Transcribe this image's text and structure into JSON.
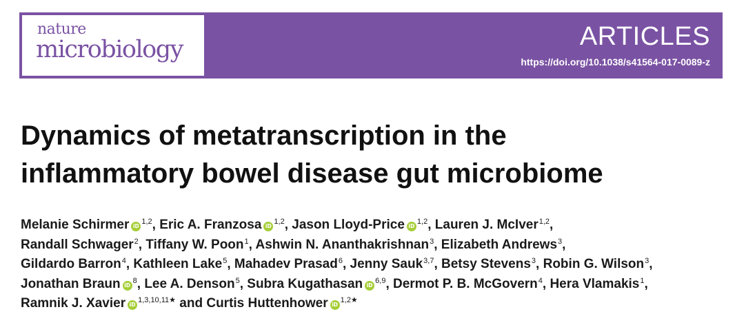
{
  "banner": {
    "journal_line1": "nature",
    "journal_line2": "microbiology",
    "section": "ARTICLES",
    "doi": "https://doi.org/10.1038/s41564-017-0089-z"
  },
  "title_line1": "Dynamics of metatranscription in the",
  "title_line2": "inflammatory bowel disease gut microbiome",
  "authors": [
    {
      "name": "Melanie Schirmer",
      "orcid": true,
      "aff": "1,2",
      "sep": ", "
    },
    {
      "name": "Eric A. Franzosa",
      "orcid": true,
      "aff": "1,2",
      "sep": ", "
    },
    {
      "name": "Jason Lloyd-Price",
      "orcid": true,
      "aff": "1,2",
      "sep": ", "
    },
    {
      "name": "Lauren J. McIver",
      "orcid": false,
      "aff": "1,2",
      "sep": ","
    },
    {
      "name": "Randall Schwager",
      "orcid": false,
      "aff": "2",
      "sep": ", "
    },
    {
      "name": "Tiffany W. Poon",
      "orcid": false,
      "aff": "1",
      "sep": ", "
    },
    {
      "name": "Ashwin N. Ananthakrishnan",
      "orcid": false,
      "aff": "3",
      "sep": ", "
    },
    {
      "name": "Elizabeth Andrews",
      "orcid": false,
      "aff": "3",
      "sep": ","
    },
    {
      "name": "Gildardo Barron",
      "orcid": false,
      "aff": "4",
      "sep": ", "
    },
    {
      "name": "Kathleen Lake",
      "orcid": false,
      "aff": "5",
      "sep": ", "
    },
    {
      "name": "Mahadev Prasad",
      "orcid": false,
      "aff": "6",
      "sep": ", "
    },
    {
      "name": "Jenny Sauk",
      "orcid": false,
      "aff": "3,7",
      "sep": ", "
    },
    {
      "name": "Betsy Stevens",
      "orcid": false,
      "aff": "3",
      "sep": ", "
    },
    {
      "name": "Robin G. Wilson",
      "orcid": false,
      "aff": "3",
      "sep": ","
    },
    {
      "name": "Jonathan Braun",
      "orcid": true,
      "aff": "8",
      "sep": ", "
    },
    {
      "name": "Lee A. Denson",
      "orcid": false,
      "aff": "5",
      "sep": ", "
    },
    {
      "name": "Subra Kugathasan",
      "orcid": true,
      "aff": "6,9",
      "sep": ", "
    },
    {
      "name": "Dermot P. B. McGovern",
      "orcid": false,
      "aff": "4",
      "sep": ", "
    },
    {
      "name": "Hera Vlamakis",
      "orcid": false,
      "aff": "1",
      "sep": ","
    },
    {
      "name": "Ramnik J. Xavier",
      "orcid": true,
      "aff": "1,3,10,11★",
      "sep": " and "
    },
    {
      "name": "Curtis Huttenhower",
      "orcid": true,
      "aff": "1,2★",
      "sep": ""
    }
  ],
  "author_line_breaks": [
    3,
    7,
    13,
    18
  ],
  "orcid_label": "iD",
  "colors": {
    "banner": "#7a52a3",
    "orcid": "#a6ce39"
  }
}
